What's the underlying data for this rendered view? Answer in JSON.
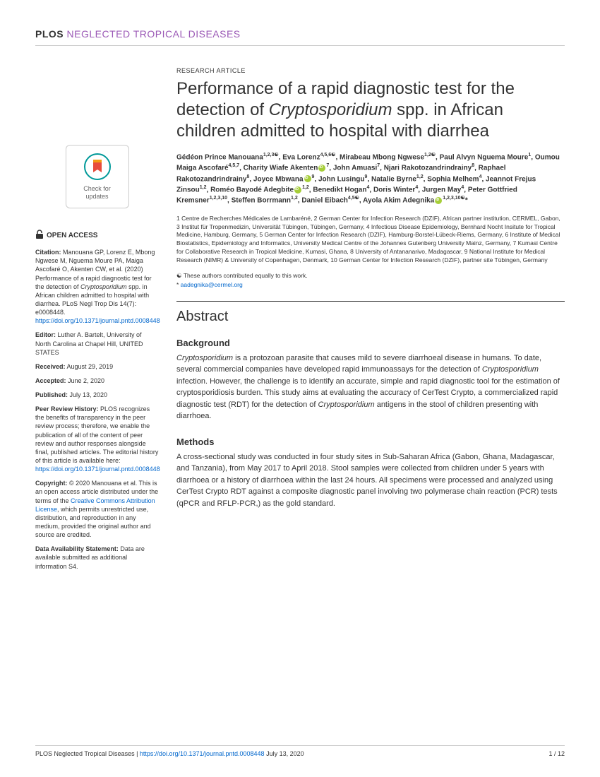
{
  "journal": {
    "plos": "PLOS",
    "ntd": "NEGLECTED TROPICAL DISEASES"
  },
  "check_updates": {
    "line1": "Check for",
    "line2": "updates"
  },
  "open_access_label": "OPEN ACCESS",
  "citation": {
    "label": "Citation:",
    "text": " Manouana GP, Lorenz E, Mbong Ngwese M, Nguema Moure PA, Maiga Ascofaré O, Akenten CW, et al. (2020) Performance of a rapid diagnostic test for the detection of ",
    "text_italic": "Cryptosporidium",
    "text2": " spp. in African children admitted to hospital with diarrhea. PLoS Negl Trop Dis 14(7): e0008448. ",
    "link": "https://doi.org/10.1371/journal.pntd.0008448"
  },
  "editor": {
    "label": "Editor:",
    "text": " Luther A. Bartelt, University of North Carolina at Chapel Hill, UNITED STATES"
  },
  "received": {
    "label": "Received:",
    "text": " August 29, 2019"
  },
  "accepted": {
    "label": "Accepted:",
    "text": " June 2, 2020"
  },
  "published": {
    "label": "Published:",
    "text": " July 13, 2020"
  },
  "peer_review": {
    "label": "Peer Review History:",
    "text": " PLOS recognizes the benefits of transparency in the peer review process; therefore, we enable the publication of all of the content of peer review and author responses alongside final, published articles. The editorial history of this article is available here: ",
    "link": "https://doi.org/10.1371/journal.pntd.0008448"
  },
  "copyright": {
    "label": "Copyright:",
    "text": " © 2020 Manouana et al. This is an open access article distributed under the terms of the ",
    "link_text": "Creative Commons Attribution License",
    "text2": ", which permits unrestricted use, distribution, and reproduction in any medium, provided the original author and source are credited."
  },
  "data_avail": {
    "label": "Data Availability Statement:",
    "text": " Data are available submitted as additional information S4."
  },
  "article_type": "RESEARCH ARTICLE",
  "title": {
    "part1": "Performance of a rapid diagnostic test for the detection of ",
    "italic": "Cryptosporidium",
    "part2": " spp. in African children admitted to hospital with diarrhea"
  },
  "authors_html": "Gédéon Prince Manouana<sup>1,2,3☯</sup>, Eva Lorenz<sup>4,5,6☯</sup>, Mirabeau Mbong Ngwese<sup>1,2☯</sup>, Paul Alvyn Nguema Moure<sup>1</sup>, Oumou Maiga Ascofaré<sup>4,5,7</sup>, Charity Wiafe Akenten<span class='orcid'></span><sup>7</sup>, John Amuasi<sup>7</sup>, Njari Rakotozandrindrainy<sup>8</sup>, Raphael Rakotozandrindrainy<sup>8</sup>, Joyce Mbwana<span class='orcid'></span><sup>9</sup>, John Lusingu<sup>9</sup>, Natalie Byrne<sup>1,2</sup>, Sophia Melhem<sup>4</sup>, Jeannot Frejus Zinsou<sup>1,2</sup>, Roméo Bayodé Adegbite<span class='orcid'></span><sup>1,2</sup>, Benedikt Hogan<sup>4</sup>, Doris Winter<sup>4</sup>, Jurgen May<sup>4</sup>, Peter Gottfried Kremsner<sup>1,2,3,10</sup>, Steffen Borrmann<sup>1,2</sup>, Daniel Eibach<sup>4,5☯</sup>, Ayola Akim Adegnika<span class='orcid'></span><sup>1,2,3,10☯</sup>*",
  "affiliations": "1 Centre de Recherches Médicales de Lambaréné, 2 German Center for Infection Research (DZIF), African partner institution, CERMEL, Gabon, 3 Institut für Tropenmedizin, Universität Tübingen, Tübingen, Germany, 4 Infectious Disease Epidemiology, Bernhard Nocht Insitute for Tropical Medicine, Hamburg, Germany, 5 German Center for Infection Research (DZIF), Hamburg-Borstel-Lübeck-Riems, Germany, 6 Institute of Medical Biostatistics, Epidemiology and Informatics, University Medical Centre of the Johannes Gutenberg University Mainz, Germany, 7 Kumasi Centre for Collaborative Research in Tropical Medicine, Kumasi, Ghana, 8 University of Antananarivo, Madagascar, 9 National Institute for Medical Research (NIMR) & University of Copenhagen, Denmark, 10 German Center for Infection Research (DZIF), partner site Tübingen, Germany",
  "contrib_note": "☯ These authors contributed equally to this work.",
  "corresp": {
    "prefix": "* ",
    "email": "aadegnika@cermel.org"
  },
  "abstract_heading": "Abstract",
  "background": {
    "heading": "Background",
    "italic1": "Cryptosporidium",
    "text1": " is a protozoan parasite that causes mild to severe diarrhoeal disease in humans. To date, several commercial companies have developed rapid immunoassays for the detection of ",
    "italic2": "Cryptosporidium",
    "text2": " infection. However, the challenge is to identify an accurate, simple and rapid diagnostic tool for the estimation of cryptosporidiosis burden. This study aims at evaluating the accuracy of CerTest Crypto, a commercialized rapid diagnostic test (RDT) for the detection of ",
    "italic3": "Cryptosporidium",
    "text3": " antigens in the stool of children presenting with diarrhoea."
  },
  "methods": {
    "heading": "Methods",
    "text": "A cross-sectional study was conducted in four study sites in Sub-Saharan Africa (Gabon, Ghana, Madagascar, and Tanzania), from May 2017 to April 2018. Stool samples were collected from children under 5 years with diarrhoea or a history of diarrhoea within the last 24 hours. All specimens were processed and analyzed using CerTest Crypto RDT against a composite diagnostic panel involving two polymerase chain reaction (PCR) tests (qPCR and RFLP-PCR,) as the gold standard."
  },
  "footer": {
    "left_text": "PLOS Neglected Tropical Diseases | ",
    "left_link": "https://doi.org/10.1371/journal.pntd.0008448",
    "left_date": "   July 13, 2020",
    "right": "1 / 12"
  }
}
